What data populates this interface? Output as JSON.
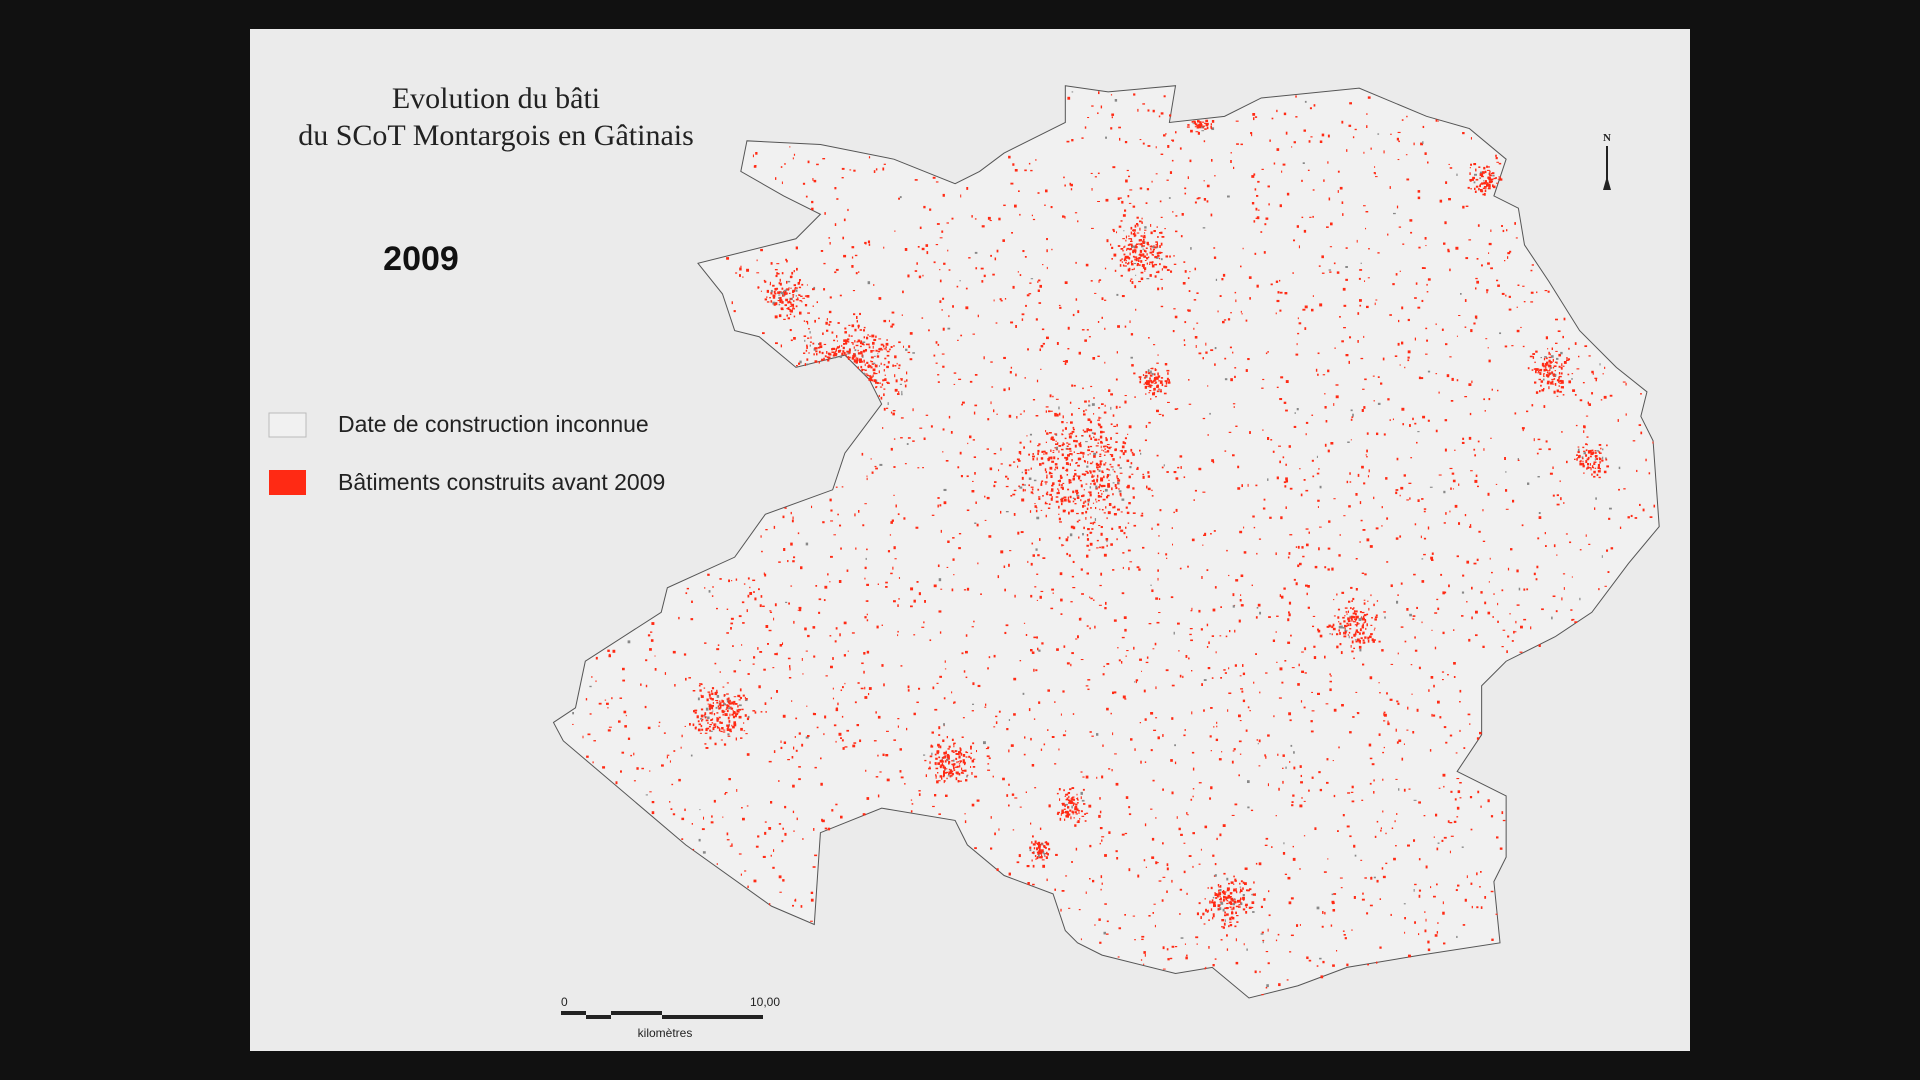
{
  "header": {
    "title_line1": "Evolution du bâti",
    "title_line2": "du SCoT Montargois en Gâtinais",
    "year": "2009"
  },
  "legend": [
    {
      "label": "Date de construction inconnue"
    },
    {
      "label": "Bâtiments construits avant 2009"
    }
  ],
  "scale": {
    "start": "0",
    "end": "10,00",
    "unit": "kilomètres"
  },
  "north": "N"
}
